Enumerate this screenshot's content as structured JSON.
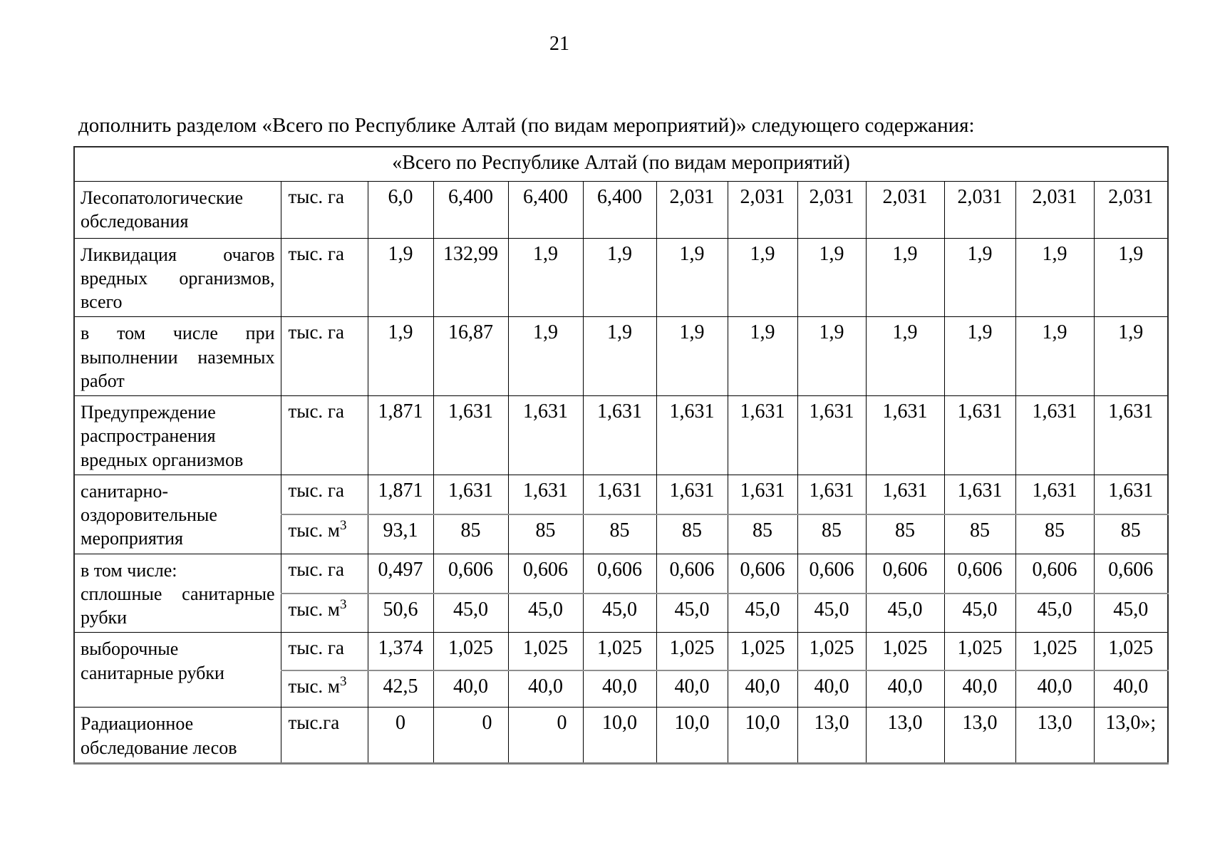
{
  "page": {
    "number": "21"
  },
  "intro_text": "дополнить разделом «Всего по Республике Алтай (по видам мероприятий)» следующего содержания:",
  "table": {
    "title": "«Всего по Республике Алтай (по видам мероприятий)",
    "rows": [
      {
        "name": "Лесопатологические обследования",
        "justify": false,
        "subrows": [
          {
            "unit": "тыс. га",
            "values": [
              "6,0",
              "6,400",
              "6,400",
              "6,400",
              "2,031",
              "2,031",
              "2,031",
              "2,031",
              "2,031",
              "2,031",
              "2,031"
            ]
          }
        ]
      },
      {
        "name": "Ликвидация очагов вредных организмов, всего",
        "justify": true,
        "subrows": [
          {
            "unit": "тыс. га",
            "values": [
              "1,9",
              "132,99",
              "1,9",
              "1,9",
              "1,9",
              "1,9",
              "1,9",
              "1,9",
              "1,9",
              "1,9",
              "1,9"
            ]
          }
        ]
      },
      {
        "name": "в том числе при выполнении наземных работ",
        "justify": true,
        "subrows": [
          {
            "unit": "тыс. га",
            "values": [
              "1,9",
              "16,87",
              "1,9",
              "1,9",
              "1,9",
              "1,9",
              "1,9",
              "1,9",
              "1,9",
              "1,9",
              "1,9"
            ]
          }
        ]
      },
      {
        "name": "Предупреждение распространения вредных организмов",
        "justify": false,
        "subrows": [
          {
            "unit": "тыс. га",
            "values": [
              "1,871",
              "1,631",
              "1,631",
              "1,631",
              "1,631",
              "1,631",
              "1,631",
              "1,631",
              "1,631",
              "1,631",
              "1,631"
            ]
          }
        ]
      },
      {
        "name": "санитарно-оздоровительные мероприятия",
        "justify": false,
        "subrows": [
          {
            "unit": "тыс. га",
            "values": [
              "1,871",
              "1,631",
              "1,631",
              "1,631",
              "1,631",
              "1,631",
              "1,631",
              "1,631",
              "1,631",
              "1,631",
              "1,631"
            ]
          },
          {
            "unit": "тыс. м",
            "unit_sup": "3",
            "values": [
              "93,1",
              "85",
              "85",
              "85",
              "85",
              "85",
              "85",
              "85",
              "85",
              "85",
              "85"
            ]
          }
        ]
      },
      {
        "name": "в том числе:\nсплошные санитарные рубки",
        "justify": true,
        "subrows": [
          {
            "unit": "тыс. га",
            "values": [
              "0,497",
              "0,606",
              "0,606",
              "0,606",
              "0,606",
              "0,606",
              "0,606",
              "0,606",
              "0,606",
              "0,606",
              "0,606"
            ]
          },
          {
            "unit": "тыс. м",
            "unit_sup": "3",
            "values": [
              "50,6",
              "45,0",
              "45,0",
              "45,0",
              "45,0",
              "45,0",
              "45,0",
              "45,0",
              "45,0",
              "45,0",
              "45,0"
            ]
          }
        ]
      },
      {
        "name": "выборочные санитарные рубки",
        "justify": true,
        "subrows": [
          {
            "unit": "тыс. га",
            "values": [
              "1,374",
              "1,025",
              "1,025",
              "1,025",
              "1,025",
              "1,025",
              "1,025",
              "1,025",
              "1,025",
              "1,025",
              "1,025"
            ]
          },
          {
            "unit": "тыс. м",
            "unit_sup": "3",
            "values": [
              "42,5",
              "40,0",
              "40,0",
              "40,0",
              "40,0",
              "40,0",
              "40,0",
              "40,0",
              "40,0",
              "40,0",
              "40,0"
            ]
          }
        ]
      },
      {
        "name": "Радиационное обследование лесов",
        "justify": false,
        "subrows": [
          {
            "unit": "тыс.га",
            "values": [
              "0",
              "0",
              "0",
              "10,0",
              "10,0",
              "10,0",
              "13,0",
              "13,0",
              "13,0",
              "13,0",
              "13,0»;"
            ],
            "aligns": [
              "center",
              "right",
              "right",
              "center",
              "center",
              "center",
              "center",
              "center",
              "center",
              "center",
              "center"
            ]
          }
        ]
      }
    ]
  }
}
